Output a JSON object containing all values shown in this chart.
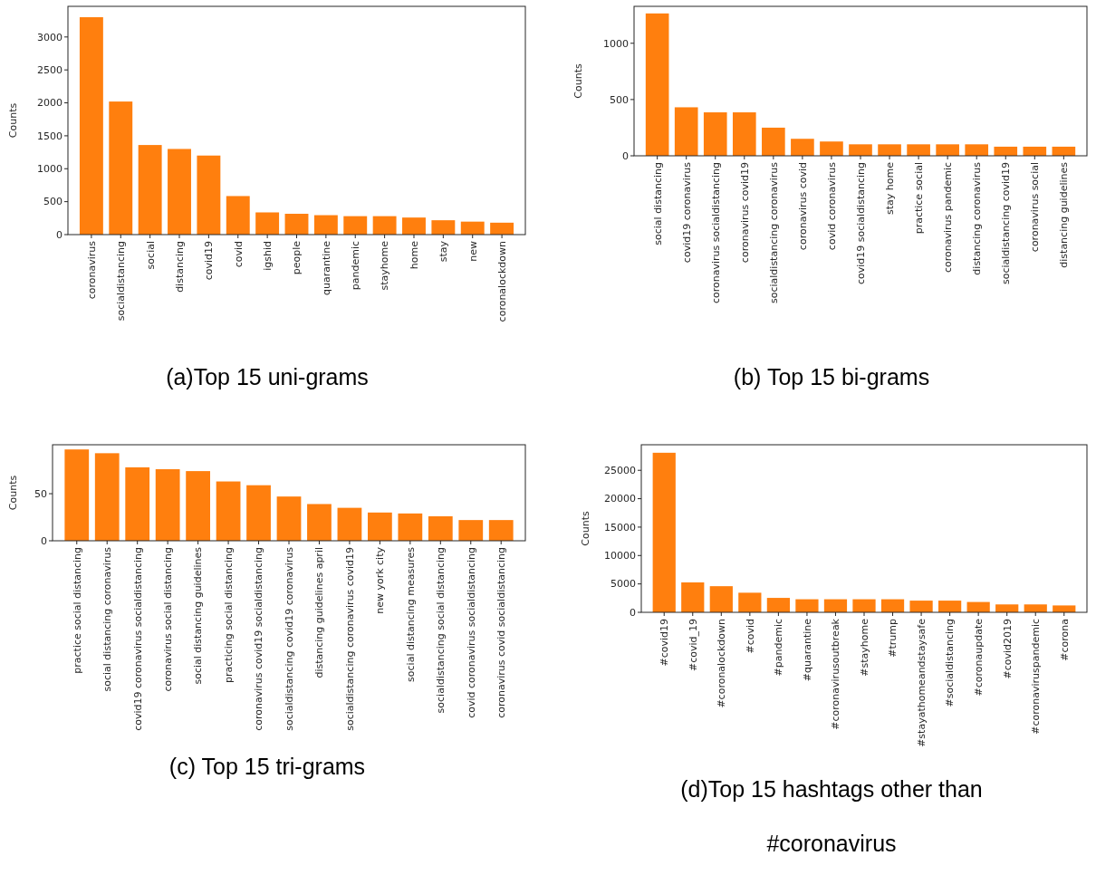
{
  "chart_data": [
    {
      "type": "bar",
      "title": "(a)Top 15 uni-grams",
      "ylabel": "Counts",
      "categories": [
        "coronavirus",
        "socialdistancing",
        "social",
        "distancing",
        "covid19",
        "covid",
        "igshid",
        "people",
        "quarantine",
        "pandemic",
        "stayhome",
        "home",
        "stay",
        "new",
        "coronalockdown"
      ],
      "values": [
        3300,
        2020,
        1360,
        1300,
        1200,
        585,
        337,
        316,
        295,
        280,
        280,
        259,
        218,
        197,
        181
      ],
      "color": "#ff7f0e",
      "ylim": [
        0,
        3465
      ],
      "yticks": [
        0,
        500,
        1000,
        1500,
        2000,
        2500,
        3000
      ]
    },
    {
      "type": "bar",
      "title": "(b) Top 15 bi-grams",
      "ylabel": "Counts",
      "categories": [
        "social distancing",
        "covid19 coronavirus",
        "coronavirus socialdistancing",
        "coronavirus covid19",
        "socialdistancing coronavirus",
        "coronavirus covid",
        "covid coronavirus",
        "covid19 socialdistancing",
        "stay home",
        "practice social",
        "coronavirus pandemic",
        "distancing coronavirus",
        "socialdistancing covid19",
        "coronavirus social",
        "distancing guidelines"
      ],
      "values": [
        1265,
        431,
        386,
        386,
        250,
        151,
        127,
        102,
        102,
        102,
        102,
        102,
        81,
        81,
        81
      ],
      "color": "#ff7f0e",
      "ylim": [
        0,
        1328
      ],
      "yticks": [
        0,
        500,
        1000
      ]
    },
    {
      "type": "bar",
      "title": "(c) Top 15 tri-grams",
      "ylabel": "Counts",
      "categories": [
        "practice social distancing",
        "social distancing coronavirus",
        "covid19 coronavirus socialdistancing",
        "coronavirus social distancing",
        "social distancing guidelines",
        "practicing social distancing",
        "coronavirus covid19 socialdistancing",
        "socialdistancing covid19 coronavirus",
        "distancing guidelines april",
        "socialdistancing coronavirus covid19",
        "new york city",
        "social distancing measures",
        "socialdistancing social distancing",
        "covid coronavirus socialdistancing",
        "coronavirus covid socialdistancing"
      ],
      "values": [
        97,
        93,
        78,
        76,
        74,
        63,
        59,
        47,
        39,
        35,
        30,
        29,
        26,
        22,
        22
      ],
      "color": "#ff7f0e",
      "ylim": [
        0,
        102
      ],
      "yticks": [
        0,
        50
      ]
    },
    {
      "type": "bar",
      "title": "(d)Top 15 hashtags other than #coronavirus",
      "ylabel": "Counts",
      "categories": [
        "#covid19",
        "#covid_19",
        "#coronalockdown",
        "#covid",
        "#pandemic",
        "#quarantine",
        "#coronavirusoutbreak",
        "#stayhome",
        "#trump",
        "#stayathomeandstaysafe",
        "#socialdistancing",
        "#coronaupdate",
        "#covid2019",
        "#coronaviruspandemic",
        "#corona"
      ],
      "values": [
        28090,
        5270,
        4600,
        3450,
        2540,
        2300,
        2300,
        2300,
        2300,
        2060,
        2060,
        1820,
        1390,
        1390,
        1210
      ],
      "color": "#ff7f0e",
      "ylim": [
        0,
        29500
      ],
      "yticks": [
        0,
        5000,
        10000,
        15000,
        20000,
        25000
      ]
    }
  ]
}
